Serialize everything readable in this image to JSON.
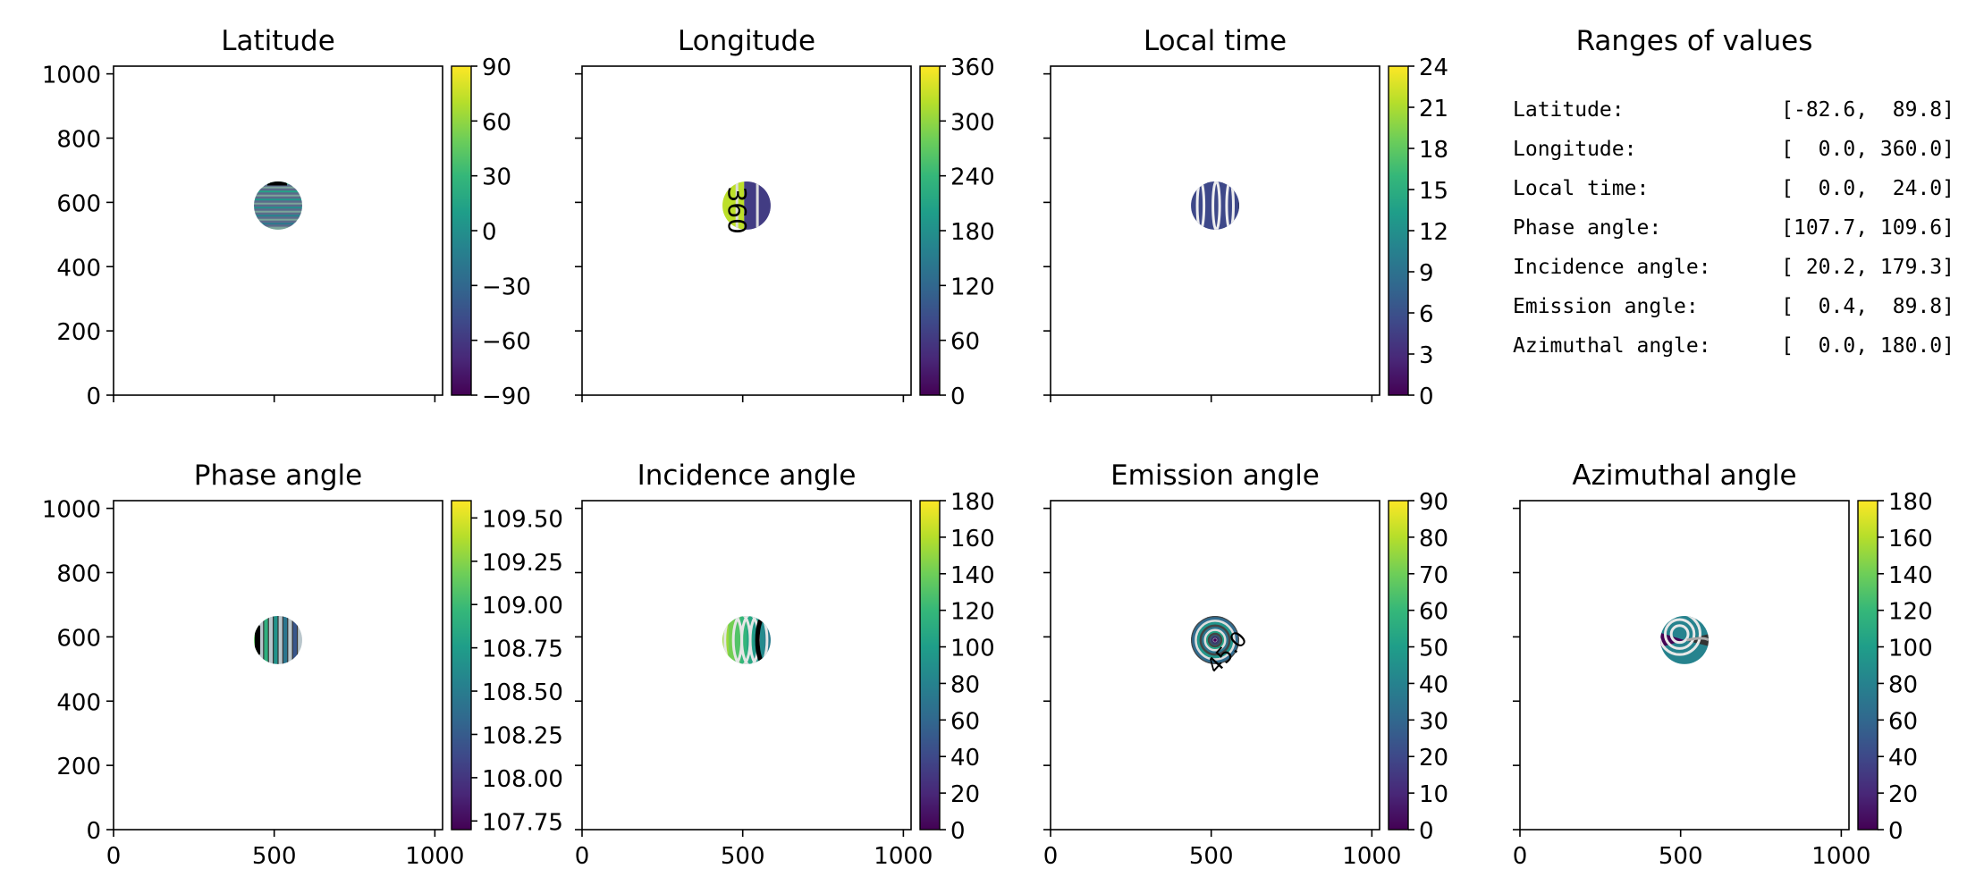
{
  "panels": [
    {
      "title": "Latitude",
      "kind": "latitude",
      "cbar_ticks": [
        "90",
        "60",
        "30",
        "0",
        "−30",
        "−60",
        "−90"
      ],
      "vmin": -90,
      "vmax": 90
    },
    {
      "title": "Longitude",
      "kind": "longitude",
      "cbar_ticks": [
        "360",
        "300",
        "240",
        "180",
        "120",
        "60",
        "0"
      ],
      "vmin": 0,
      "vmax": 360,
      "contour_label": "360"
    },
    {
      "title": "Local time",
      "kind": "localtime",
      "cbar_ticks": [
        "24",
        "21",
        "18",
        "15",
        "12",
        "9",
        "6",
        "3",
        "0"
      ],
      "vmin": 0,
      "vmax": 24
    },
    {
      "title": "Phase angle",
      "kind": "phase",
      "cbar_ticks": [
        "109.50",
        "109.25",
        "109.00",
        "108.75",
        "108.50",
        "108.25",
        "108.00",
        "107.75"
      ],
      "vmin": 107.7,
      "vmax": 109.6
    },
    {
      "title": "Incidence angle",
      "kind": "incidence",
      "cbar_ticks": [
        "180",
        "160",
        "140",
        "120",
        "100",
        "80",
        "60",
        "40",
        "20",
        "0"
      ],
      "vmin": 0,
      "vmax": 180
    },
    {
      "title": "Emission angle",
      "kind": "emission",
      "cbar_ticks": [
        "90",
        "80",
        "70",
        "60",
        "50",
        "40",
        "30",
        "20",
        "10",
        "0"
      ],
      "vmin": 0,
      "vmax": 90,
      "contour_label": "45.0"
    },
    {
      "title": "Azimuthal angle",
      "kind": "azimuth",
      "cbar_ticks": [
        "180",
        "160",
        "140",
        "120",
        "100",
        "80",
        "60",
        "40",
        "20",
        "0"
      ],
      "vmin": 0,
      "vmax": 180
    }
  ],
  "axes": {
    "y_ticks": [
      "0",
      "200",
      "400",
      "600",
      "800",
      "1000"
    ],
    "x_ticks": [
      "0",
      "500",
      "1000"
    ],
    "xlim": [
      0,
      1024
    ],
    "ylim": [
      0,
      1024
    ]
  },
  "ranges": {
    "title": "Ranges of values",
    "rows": [
      {
        "label": "Latitude:",
        "value": "[-82.6,  89.8]"
      },
      {
        "label": "Longitude:",
        "value": "[  0.0, 360.0]"
      },
      {
        "label": "Local time:",
        "value": "[  0.0,  24.0]"
      },
      {
        "label": "Phase angle:",
        "value": "[107.7, 109.6]"
      },
      {
        "label": "Incidence angle:",
        "value": "[ 20.2, 179.3]"
      },
      {
        "label": "Emission angle:",
        "value": "[  0.4,  89.8]"
      },
      {
        "label": "Azimuthal angle:",
        "value": "[  0.0, 180.0]"
      }
    ]
  },
  "colors": {
    "viridis": [
      "#440154",
      "#482878",
      "#3e4989",
      "#31688e",
      "#26828e",
      "#1f9e89",
      "#35b779",
      "#6ece58",
      "#b5de2b",
      "#fde725"
    ]
  },
  "chart_data": {
    "type": "heatmap",
    "disk_center": [
      512,
      590
    ],
    "disk_radius": 75,
    "series": [
      {
        "name": "Latitude",
        "range": [
          -82.6,
          89.8
        ]
      },
      {
        "name": "Longitude",
        "range": [
          0.0,
          360.0
        ]
      },
      {
        "name": "Local time",
        "range": [
          0.0,
          24.0
        ]
      },
      {
        "name": "Phase angle",
        "range": [
          107.7,
          109.6
        ]
      },
      {
        "name": "Incidence angle",
        "range": [
          20.2,
          179.3
        ]
      },
      {
        "name": "Emission angle",
        "range": [
          0.4,
          89.8
        ]
      },
      {
        "name": "Azimuthal angle",
        "range": [
          0.0,
          180.0
        ]
      }
    ]
  }
}
